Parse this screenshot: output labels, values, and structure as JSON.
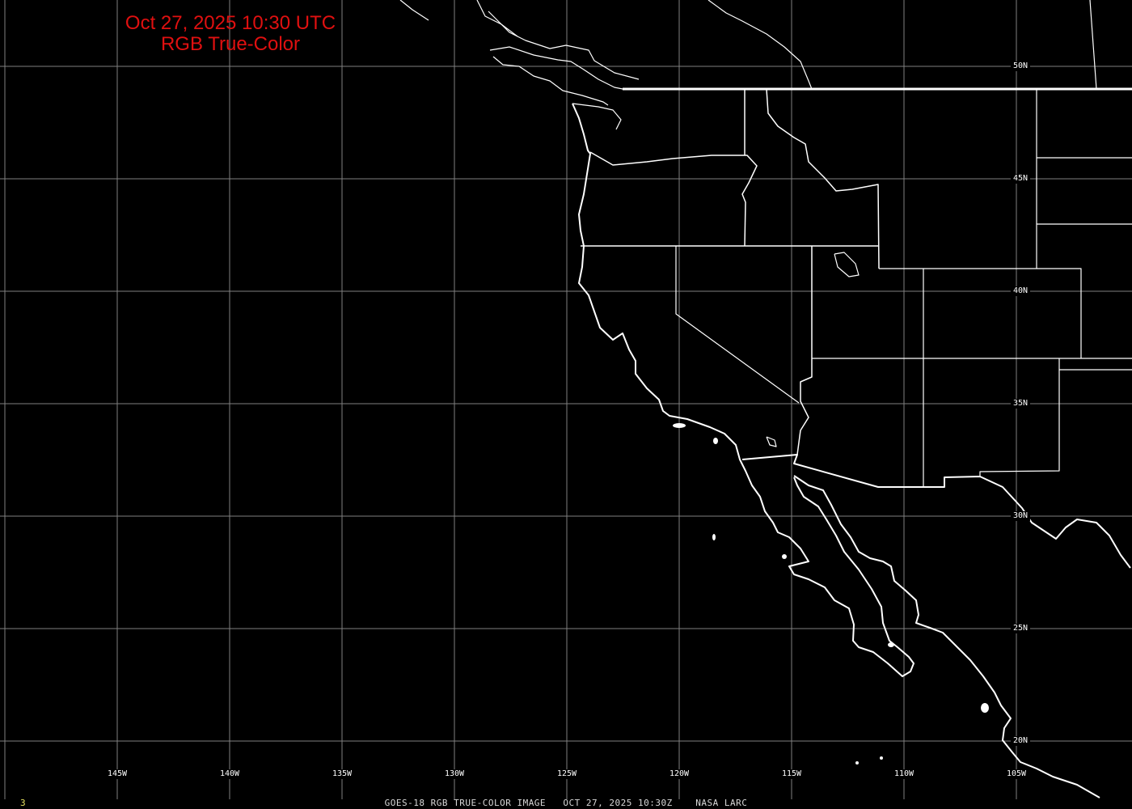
{
  "header": {
    "datetime": "Oct 27, 2025 10:30 UTC",
    "product": "RGB True-Color"
  },
  "footer": {
    "caption": "GOES-18 RGB TRUE-COLOR IMAGE   OCT 27, 2025 10:30Z    NASA LARC",
    "frame_number": "3"
  },
  "map": {
    "longitude_labels": [
      "145W",
      "140W",
      "135W",
      "130W",
      "125W",
      "120W",
      "115W",
      "110W",
      "105W"
    ],
    "latitude_labels": [
      "50N",
      "45N",
      "40N",
      "35N",
      "30N",
      "25N",
      "20N"
    ],
    "colors": {
      "background": "#000000",
      "grid": "#808080",
      "coastline": "#ffffff",
      "title": "#e01010",
      "frame_number": "#e6e060"
    }
  }
}
